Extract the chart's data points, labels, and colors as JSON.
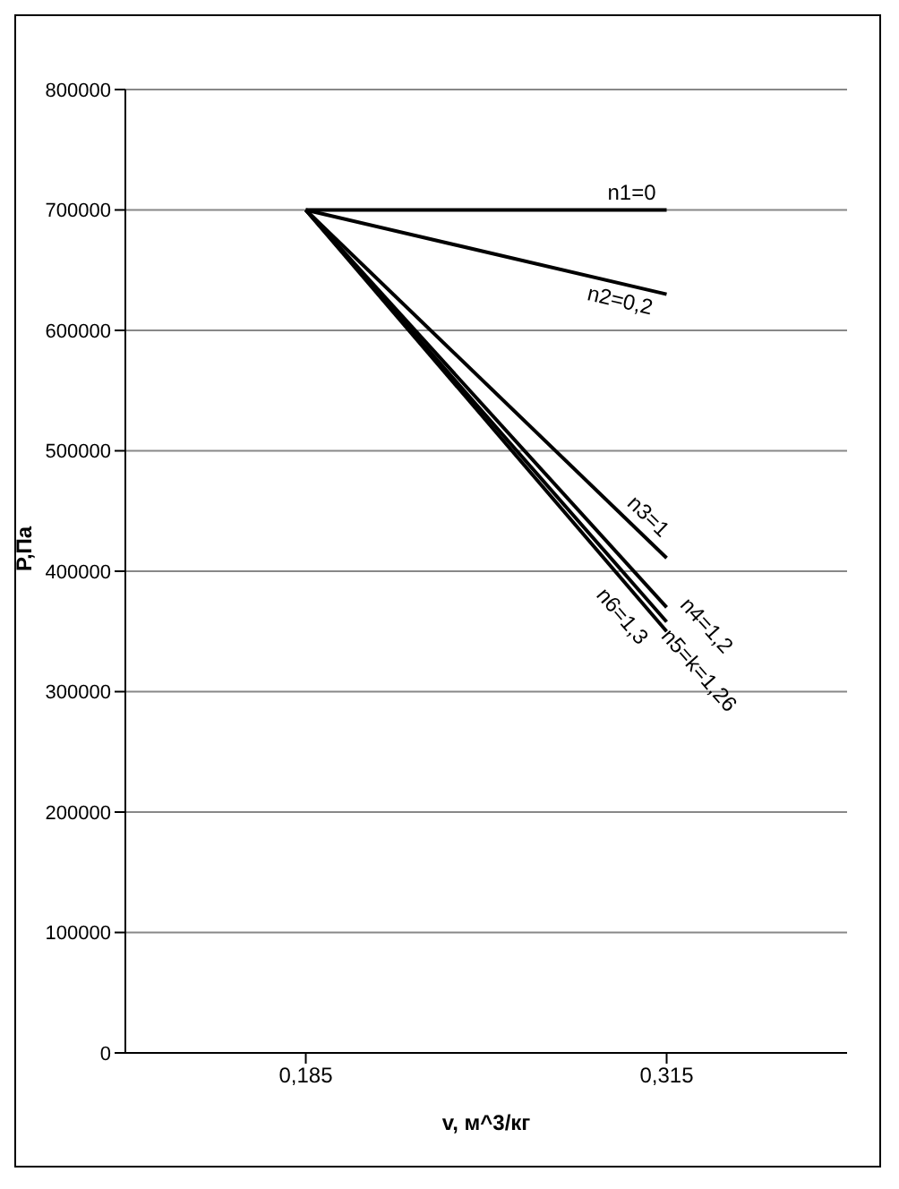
{
  "chart_data": {
    "type": "line",
    "xlabel": "v, м^3/кг",
    "ylabel": "P,Па",
    "categories": [
      "0,185",
      "0,315"
    ],
    "series": [
      {
        "name": "n1=0",
        "color": "#000000",
        "values": [
          700000,
          700000
        ]
      },
      {
        "name": "n2=0,2",
        "color": "#000000",
        "values": [
          700000,
          630000
        ]
      },
      {
        "name": "n3=1",
        "color": "#000000",
        "values": [
          700000,
          411000
        ]
      },
      {
        "name": "n4=1,2",
        "color": "#000000",
        "values": [
          700000,
          370000
        ]
      },
      {
        "name": "n5=k=1,26",
        "color": "#000000",
        "values": [
          700000,
          358000
        ]
      },
      {
        "name": "n6=1,3",
        "color": "#000000",
        "values": [
          700000,
          350000
        ]
      }
    ],
    "ylim": [
      0,
      800000
    ],
    "yticks": [
      0,
      100000,
      200000,
      300000,
      400000,
      500000,
      600000,
      700000,
      800000
    ],
    "grid": "y",
    "legend": false,
    "marker": "none",
    "line_style": "solid"
  }
}
